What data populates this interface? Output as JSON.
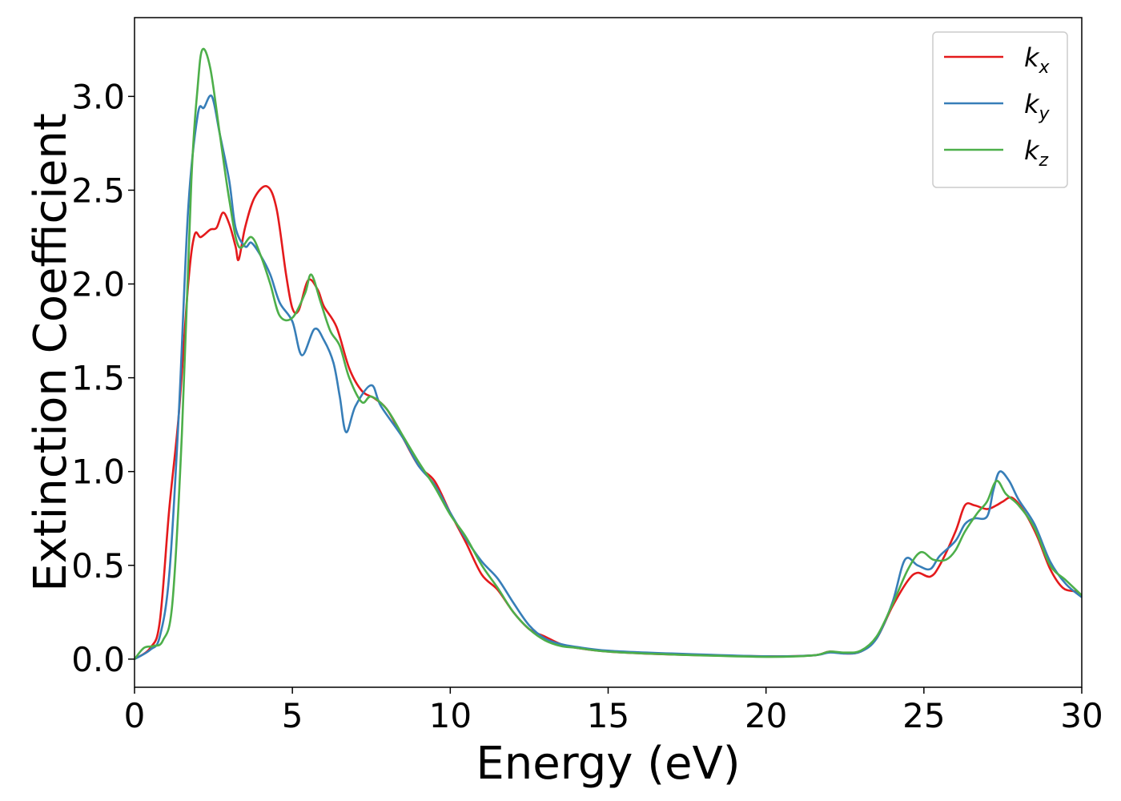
{
  "chart_data": {
    "type": "line",
    "title": "",
    "xlabel": "Energy (eV)",
    "ylabel": "Extinction Coefficient",
    "xlim": [
      0,
      30
    ],
    "ylim": [
      -0.15,
      3.42
    ],
    "xticks": [
      0,
      5,
      10,
      15,
      20,
      25,
      30
    ],
    "xtick_labels": [
      "0",
      "5",
      "10",
      "15",
      "20",
      "25",
      "30"
    ],
    "yticks": [
      0.0,
      0.5,
      1.0,
      1.5,
      2.0,
      2.5,
      3.0
    ],
    "ytick_labels": [
      "0.0",
      "0.5",
      "1.0",
      "1.5",
      "2.0",
      "2.5",
      "3.0"
    ],
    "grid": false,
    "legend_position": "top-right",
    "series": [
      {
        "name": "k",
        "subscript": "x",
        "color": "#e41a1c",
        "points": [
          [
            0,
            0
          ],
          [
            0.5,
            0.06
          ],
          [
            0.8,
            0.2
          ],
          [
            1.1,
            0.8
          ],
          [
            1.4,
            1.3
          ],
          [
            1.7,
            2.0
          ],
          [
            1.9,
            2.26
          ],
          [
            2.1,
            2.25
          ],
          [
            2.4,
            2.29
          ],
          [
            2.6,
            2.3
          ],
          [
            2.8,
            2.38
          ],
          [
            3.0,
            2.32
          ],
          [
            3.2,
            2.2
          ],
          [
            3.3,
            2.13
          ],
          [
            3.5,
            2.3
          ],
          [
            3.8,
            2.46
          ],
          [
            4.2,
            2.52
          ],
          [
            4.5,
            2.4
          ],
          [
            4.8,
            2.05
          ],
          [
            5.0,
            1.87
          ],
          [
            5.2,
            1.86
          ],
          [
            5.5,
            2.02
          ],
          [
            5.8,
            1.97
          ],
          [
            6.0,
            1.88
          ],
          [
            6.4,
            1.77
          ],
          [
            6.8,
            1.55
          ],
          [
            7.2,
            1.43
          ],
          [
            7.6,
            1.39
          ],
          [
            8.0,
            1.33
          ],
          [
            8.5,
            1.18
          ],
          [
            9.0,
            1.03
          ],
          [
            9.5,
            0.95
          ],
          [
            10.0,
            0.78
          ],
          [
            10.5,
            0.62
          ],
          [
            11.0,
            0.45
          ],
          [
            11.5,
            0.37
          ],
          [
            12.0,
            0.25
          ],
          [
            12.5,
            0.16
          ],
          [
            13.0,
            0.12
          ],
          [
            13.5,
            0.08
          ],
          [
            14.0,
            0.06
          ],
          [
            15.0,
            0.04
          ],
          [
            17.0,
            0.025
          ],
          [
            20.0,
            0.015
          ],
          [
            21.5,
            0.02
          ],
          [
            22.0,
            0.04
          ],
          [
            22.5,
            0.03
          ],
          [
            23.0,
            0.04
          ],
          [
            23.5,
            0.11
          ],
          [
            24.0,
            0.28
          ],
          [
            24.5,
            0.42
          ],
          [
            24.8,
            0.46
          ],
          [
            25.2,
            0.44
          ],
          [
            25.5,
            0.5
          ],
          [
            26.0,
            0.68
          ],
          [
            26.3,
            0.82
          ],
          [
            26.6,
            0.82
          ],
          [
            27.0,
            0.8
          ],
          [
            27.3,
            0.82
          ],
          [
            27.5,
            0.84
          ],
          [
            27.8,
            0.86
          ],
          [
            28.2,
            0.78
          ],
          [
            28.6,
            0.65
          ],
          [
            29.0,
            0.48
          ],
          [
            29.4,
            0.38
          ],
          [
            29.8,
            0.36
          ],
          [
            30.0,
            0.34
          ]
        ]
      },
      {
        "name": "k",
        "subscript": "y",
        "color": "#377eb8",
        "points": [
          [
            0,
            0
          ],
          [
            0.5,
            0.05
          ],
          [
            0.8,
            0.12
          ],
          [
            1.1,
            0.45
          ],
          [
            1.4,
            1.3
          ],
          [
            1.7,
            2.4
          ],
          [
            2.0,
            2.9
          ],
          [
            2.2,
            2.94
          ],
          [
            2.45,
            3.0
          ],
          [
            2.7,
            2.8
          ],
          [
            3.0,
            2.55
          ],
          [
            3.2,
            2.3
          ],
          [
            3.5,
            2.2
          ],
          [
            3.7,
            2.22
          ],
          [
            4.0,
            2.15
          ],
          [
            4.3,
            2.05
          ],
          [
            4.6,
            1.9
          ],
          [
            5.0,
            1.8
          ],
          [
            5.3,
            1.62
          ],
          [
            5.7,
            1.76
          ],
          [
            6.0,
            1.7
          ],
          [
            6.3,
            1.58
          ],
          [
            6.5,
            1.4
          ],
          [
            6.7,
            1.21
          ],
          [
            7.0,
            1.35
          ],
          [
            7.5,
            1.46
          ],
          [
            7.8,
            1.35
          ],
          [
            8.5,
            1.18
          ],
          [
            9.0,
            1.03
          ],
          [
            9.5,
            0.93
          ],
          [
            10.0,
            0.78
          ],
          [
            10.5,
            0.64
          ],
          [
            11.0,
            0.52
          ],
          [
            11.5,
            0.43
          ],
          [
            12.0,
            0.3
          ],
          [
            12.5,
            0.18
          ],
          [
            13.0,
            0.11
          ],
          [
            13.5,
            0.08
          ],
          [
            14.0,
            0.065
          ],
          [
            15.0,
            0.045
          ],
          [
            17.0,
            0.03
          ],
          [
            20.0,
            0.015
          ],
          [
            21.5,
            0.02
          ],
          [
            22.0,
            0.035
          ],
          [
            22.5,
            0.03
          ],
          [
            23.0,
            0.04
          ],
          [
            23.5,
            0.11
          ],
          [
            24.0,
            0.3
          ],
          [
            24.4,
            0.53
          ],
          [
            24.8,
            0.5
          ],
          [
            25.2,
            0.48
          ],
          [
            25.5,
            0.55
          ],
          [
            26.0,
            0.63
          ],
          [
            26.3,
            0.72
          ],
          [
            26.6,
            0.75
          ],
          [
            27.0,
            0.76
          ],
          [
            27.2,
            0.9
          ],
          [
            27.4,
            1.0
          ],
          [
            27.7,
            0.95
          ],
          [
            28.0,
            0.85
          ],
          [
            28.5,
            0.72
          ],
          [
            29.0,
            0.52
          ],
          [
            29.5,
            0.4
          ],
          [
            30.0,
            0.33
          ]
        ]
      },
      {
        "name": "k",
        "subscript": "z",
        "color": "#4daf4a",
        "points": [
          [
            0,
            0
          ],
          [
            0.3,
            0.06
          ],
          [
            0.6,
            0.07
          ],
          [
            0.9,
            0.1
          ],
          [
            1.2,
            0.3
          ],
          [
            1.5,
            1.2
          ],
          [
            1.8,
            2.55
          ],
          [
            2.0,
            3.05
          ],
          [
            2.15,
            3.25
          ],
          [
            2.4,
            3.15
          ],
          [
            2.7,
            2.8
          ],
          [
            3.0,
            2.45
          ],
          [
            3.3,
            2.2
          ],
          [
            3.7,
            2.25
          ],
          [
            4.0,
            2.15
          ],
          [
            4.3,
            2.0
          ],
          [
            4.6,
            1.83
          ],
          [
            5.0,
            1.82
          ],
          [
            5.4,
            1.95
          ],
          [
            5.6,
            2.05
          ],
          [
            5.9,
            1.9
          ],
          [
            6.2,
            1.75
          ],
          [
            6.5,
            1.67
          ],
          [
            6.8,
            1.5
          ],
          [
            7.2,
            1.37
          ],
          [
            7.5,
            1.4
          ],
          [
            8.0,
            1.33
          ],
          [
            8.5,
            1.19
          ],
          [
            9.0,
            1.05
          ],
          [
            9.5,
            0.92
          ],
          [
            10.0,
            0.77
          ],
          [
            10.5,
            0.65
          ],
          [
            11.0,
            0.5
          ],
          [
            11.5,
            0.38
          ],
          [
            12.0,
            0.25
          ],
          [
            12.5,
            0.16
          ],
          [
            13.0,
            0.1
          ],
          [
            13.5,
            0.07
          ],
          [
            14.0,
            0.06
          ],
          [
            15.0,
            0.04
          ],
          [
            17.0,
            0.025
          ],
          [
            20.0,
            0.012
          ],
          [
            21.5,
            0.02
          ],
          [
            22.0,
            0.04
          ],
          [
            22.5,
            0.035
          ],
          [
            23.0,
            0.045
          ],
          [
            23.5,
            0.12
          ],
          [
            24.0,
            0.29
          ],
          [
            24.5,
            0.48
          ],
          [
            24.9,
            0.57
          ],
          [
            25.3,
            0.53
          ],
          [
            25.7,
            0.53
          ],
          [
            26.0,
            0.58
          ],
          [
            26.3,
            0.68
          ],
          [
            26.7,
            0.78
          ],
          [
            27.0,
            0.84
          ],
          [
            27.3,
            0.95
          ],
          [
            27.6,
            0.88
          ],
          [
            28.0,
            0.82
          ],
          [
            28.5,
            0.7
          ],
          [
            29.0,
            0.5
          ],
          [
            29.5,
            0.42
          ],
          [
            30.0,
            0.34
          ]
        ]
      }
    ]
  }
}
